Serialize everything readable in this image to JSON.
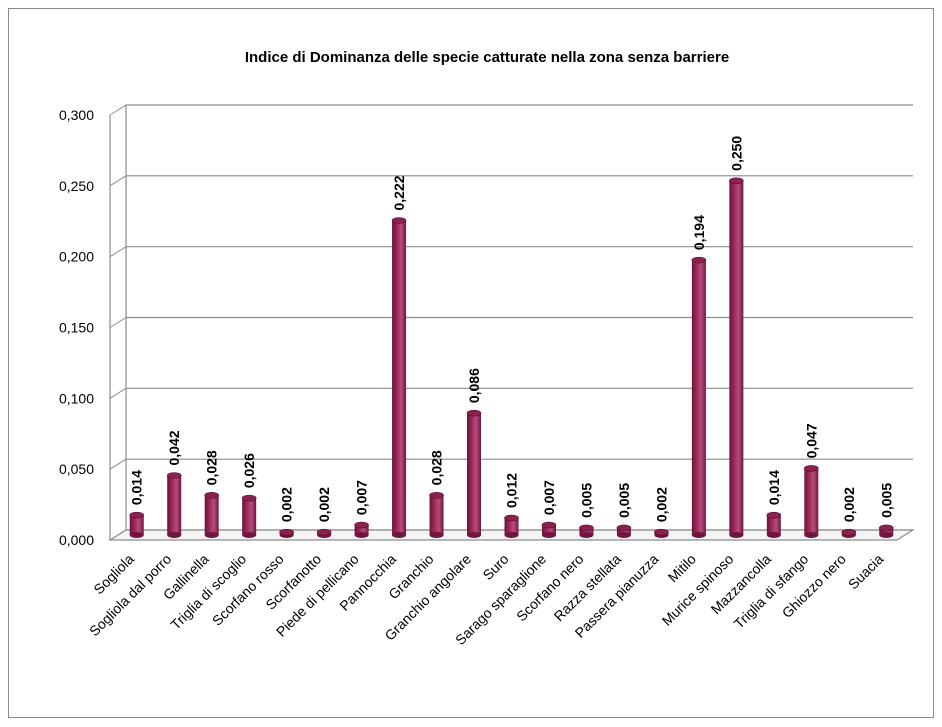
{
  "chart_data": {
    "type": "bar",
    "title": "Indice di Dominanza delle specie catturate nella zona senza barriere",
    "xlabel": "",
    "ylabel": "",
    "ylim": [
      0,
      0.3
    ],
    "yticks": [
      "0,000",
      "0,050",
      "0,100",
      "0,150",
      "0,200",
      "0,250",
      "0,300"
    ],
    "grid": true,
    "legend": "none",
    "bar_color": "#9b2a5a",
    "categories": [
      "Sogliola",
      "Sogliola dal porro",
      "Gallinella",
      "Triglia di scoglio",
      "Scorfano rosso",
      "Scorfanotto",
      "Piede di pellicano",
      "Pannocchia",
      "Granchio",
      "Granchio angolare",
      "Suro",
      "Sarago sparaglione",
      "Scorfano nero",
      "Razza stellata",
      "Passera pianuzza",
      "Mitilo",
      "Murice spinoso",
      "Mazzancolla",
      "Triglia di sfango",
      "Ghiozzo nero",
      "Suacia"
    ],
    "values": [
      0.014,
      0.042,
      0.028,
      0.026,
      0.002,
      0.002,
      0.007,
      0.222,
      0.028,
      0.086,
      0.012,
      0.007,
      0.005,
      0.005,
      0.002,
      0.194,
      0.25,
      0.014,
      0.047,
      0.002,
      0.005
    ],
    "data_labels": [
      "0,014",
      "0,042",
      "0,028",
      "0,026",
      "0,002",
      "0,002",
      "0,007",
      "0,222",
      "0,028",
      "0,086",
      "0,012",
      "0,007",
      "0,005",
      "0,005",
      "0,002",
      "0,194",
      "0,250",
      "0,014",
      "0,047",
      "0,002",
      "0,005"
    ]
  }
}
